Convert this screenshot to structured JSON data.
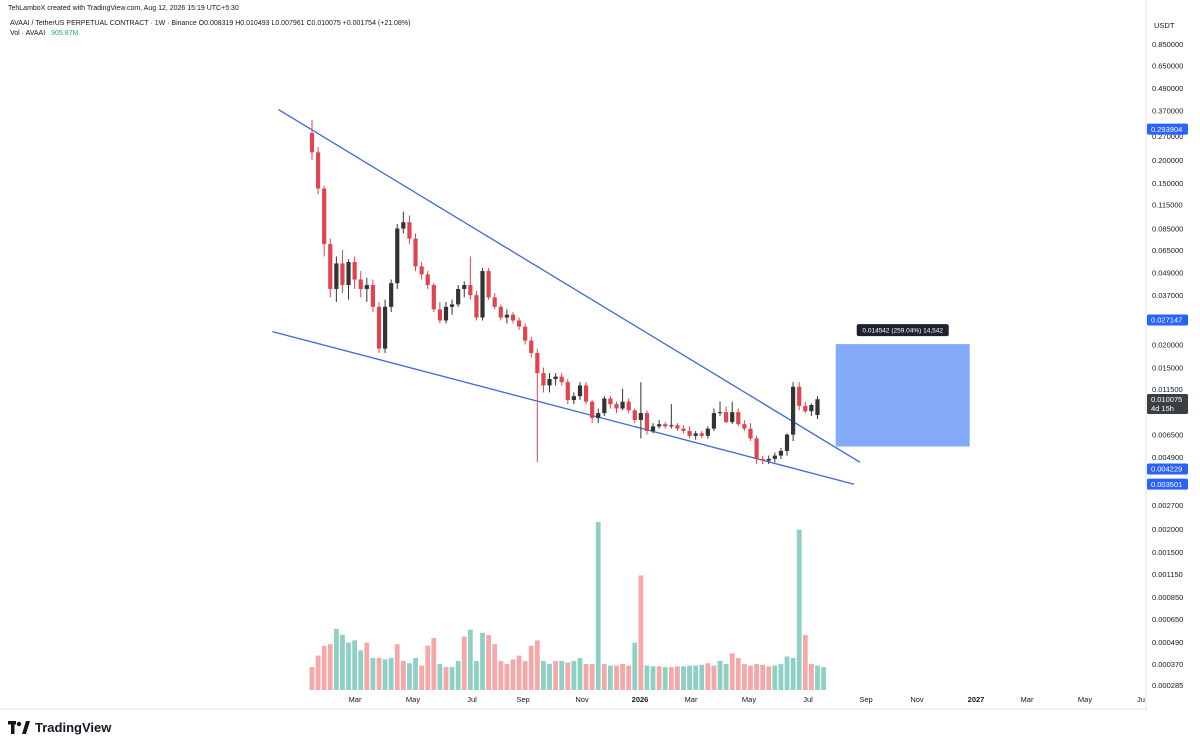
{
  "header": {
    "credit": "TehLamboX created with TradingView.com, Aug 12, 2026 15:19 UTC+5:30",
    "legend": "AVAAI / TetherUS PERPETUAL CONTRACT · 1W · Binance  O0.008319  H0.010493  L0.007961  C0.010075  +0.001754 (+21.08%)",
    "vol_label": "Vol · AVAAI",
    "vol_value": "905.87M"
  },
  "footer": {
    "brand": "TradingView"
  },
  "colors": {
    "up": "#333333",
    "down": "#e0454f",
    "vol_up": "#8fd0c4",
    "vol_down": "#f4a9a8",
    "trend": "#3c6ad6",
    "measure_box": "#6f9cf8"
  },
  "chart_data": {
    "type": "candlestick",
    "currency_label": "USDT",
    "y_scale": "log",
    "ylim": [
      0.0026,
      0.9
    ],
    "price_ticks": [
      "0.850000",
      "0.650000",
      "0.490000",
      "0.370000",
      "0.270000",
      "0.200000",
      "0.150000",
      "0.115000",
      "0.085000",
      "0.065000",
      "0.049000",
      "0.037000",
      "0.020000",
      "0.015000",
      "0.011500",
      "0.006500",
      "0.004900",
      "0.002700"
    ],
    "volume_ticks": [
      "0.002000",
      "0.001500",
      "0.001150",
      "0.000850",
      "0.000650",
      "0.000490",
      "0.000370",
      "0.000285"
    ],
    "x_ticks": [
      "Mar",
      "May",
      "Jul",
      "Sep",
      "Nov",
      "2026",
      "Mar",
      "May",
      "Jul",
      "Sep",
      "Nov",
      "2027",
      "Mar",
      "May",
      "Ju"
    ],
    "price_labels": [
      {
        "value": "0.293904",
        "price": 0.2939,
        "bg": "#2962ff",
        "fg": "#ffffff"
      },
      {
        "value": "0.027147",
        "price": 0.027147,
        "bg": "#2962ff",
        "fg": "#ffffff"
      },
      {
        "value": "0.010075",
        "sub": "4d 15h",
        "price": 0.010075,
        "bg": "#3a3e45",
        "fg": "#ffffff"
      },
      {
        "value": "0.004229",
        "price": 0.004229,
        "bg": "#2962ff",
        "fg": "#ffffff"
      },
      {
        "value": "0.003501",
        "price": 0.003501,
        "bg": "#2962ff",
        "fg": "#ffffff"
      }
    ],
    "measure": {
      "label": "0.014542 (259.04%) 14,542",
      "from_index": 86,
      "to_index": 108,
      "low": 0.0056,
      "high": 0.0201
    },
    "trendlines": [
      {
        "name": "upper",
        "start": [
          -5.5,
          0.375
        ],
        "end": [
          90,
          0.0046
        ]
      },
      {
        "name": "lower",
        "start": [
          -6.5,
          0.0235
        ],
        "end": [
          89,
          0.0035
        ]
      }
    ],
    "candles": [
      [
        0.28,
        0.33,
        0.2,
        0.22
      ],
      [
        0.22,
        0.235,
        0.13,
        0.14
      ],
      [
        0.14,
        0.145,
        0.06,
        0.07
      ],
      [
        0.07,
        0.075,
        0.036,
        0.04
      ],
      [
        0.04,
        0.06,
        0.034,
        0.055
      ],
      [
        0.055,
        0.065,
        0.038,
        0.042
      ],
      [
        0.042,
        0.058,
        0.035,
        0.056
      ],
      [
        0.056,
        0.06,
        0.04,
        0.045
      ],
      [
        0.045,
        0.05,
        0.036,
        0.04
      ],
      [
        0.04,
        0.046,
        0.034,
        0.042
      ],
      [
        0.042,
        0.045,
        0.03,
        0.032
      ],
      [
        0.032,
        0.034,
        0.018,
        0.019
      ],
      [
        0.019,
        0.035,
        0.018,
        0.032
      ],
      [
        0.032,
        0.045,
        0.03,
        0.043
      ],
      [
        0.043,
        0.09,
        0.04,
        0.085
      ],
      [
        0.085,
        0.105,
        0.08,
        0.092
      ],
      [
        0.092,
        0.1,
        0.07,
        0.075
      ],
      [
        0.075,
        0.08,
        0.05,
        0.053
      ],
      [
        0.053,
        0.056,
        0.045,
        0.048
      ],
      [
        0.048,
        0.05,
        0.04,
        0.042
      ],
      [
        0.042,
        0.043,
        0.03,
        0.031
      ],
      [
        0.031,
        0.034,
        0.026,
        0.027
      ],
      [
        0.027,
        0.034,
        0.026,
        0.032
      ],
      [
        0.032,
        0.035,
        0.029,
        0.033
      ],
      [
        0.033,
        0.042,
        0.032,
        0.04
      ],
      [
        0.04,
        0.044,
        0.036,
        0.042
      ],
      [
        0.042,
        0.06,
        0.035,
        0.037
      ],
      [
        0.037,
        0.039,
        0.027,
        0.028
      ],
      [
        0.028,
        0.052,
        0.027,
        0.05
      ],
      [
        0.05,
        0.052,
        0.035,
        0.036
      ],
      [
        0.036,
        0.038,
        0.031,
        0.032
      ],
      [
        0.032,
        0.033,
        0.027,
        0.028
      ],
      [
        0.028,
        0.031,
        0.026,
        0.029
      ],
      [
        0.029,
        0.03,
        0.026,
        0.027
      ],
      [
        0.027,
        0.028,
        0.024,
        0.025
      ],
      [
        0.025,
        0.026,
        0.02,
        0.021
      ],
      [
        0.021,
        0.022,
        0.017,
        0.018
      ],
      [
        0.018,
        0.019,
        0.0046,
        0.014
      ],
      [
        0.014,
        0.015,
        0.011,
        0.012
      ],
      [
        0.012,
        0.014,
        0.011,
        0.013
      ],
      [
        0.013,
        0.014,
        0.012,
        0.0134
      ],
      [
        0.0134,
        0.014,
        0.012,
        0.0125
      ],
      [
        0.0125,
        0.013,
        0.0095,
        0.01
      ],
      [
        0.01,
        0.011,
        0.0095,
        0.0105
      ],
      [
        0.0105,
        0.0125,
        0.01,
        0.012
      ],
      [
        0.012,
        0.0125,
        0.0095,
        0.0098
      ],
      [
        0.0098,
        0.01,
        0.0075,
        0.008
      ],
      [
        0.008,
        0.009,
        0.0075,
        0.0085
      ],
      [
        0.0085,
        0.0105,
        0.0082,
        0.0102
      ],
      [
        0.0102,
        0.0105,
        0.009,
        0.0095
      ],
      [
        0.0095,
        0.0098,
        0.0085,
        0.009
      ],
      [
        0.009,
        0.0115,
        0.0088,
        0.0098
      ],
      [
        0.0098,
        0.0102,
        0.0085,
        0.0088
      ],
      [
        0.0088,
        0.009,
        0.0075,
        0.0078
      ],
      [
        0.0078,
        0.0125,
        0.0062,
        0.0085
      ],
      [
        0.0085,
        0.0088,
        0.0065,
        0.0068
      ],
      [
        0.0068,
        0.0075,
        0.0066,
        0.0072
      ],
      [
        0.0072,
        0.0078,
        0.007,
        0.0074
      ],
      [
        0.0074,
        0.0076,
        0.007,
        0.0072
      ],
      [
        0.0072,
        0.0095,
        0.007,
        0.0073
      ],
      [
        0.0073,
        0.0075,
        0.0068,
        0.007
      ],
      [
        0.007,
        0.0073,
        0.0066,
        0.0068
      ],
      [
        0.0068,
        0.0072,
        0.0062,
        0.0064
      ],
      [
        0.0064,
        0.0068,
        0.0061,
        0.0066
      ],
      [
        0.0066,
        0.0068,
        0.0062,
        0.0064
      ],
      [
        0.0064,
        0.0072,
        0.0062,
        0.007
      ],
      [
        0.007,
        0.009,
        0.0068,
        0.0085
      ],
      [
        0.0085,
        0.0098,
        0.0082,
        0.0086
      ],
      [
        0.0086,
        0.0092,
        0.0075,
        0.0076
      ],
      [
        0.0076,
        0.0098,
        0.0074,
        0.0086
      ],
      [
        0.0086,
        0.009,
        0.0072,
        0.0074
      ],
      [
        0.0074,
        0.0078,
        0.0068,
        0.007
      ],
      [
        0.007,
        0.0075,
        0.006,
        0.0062
      ],
      [
        0.0062,
        0.0064,
        0.0045,
        0.0048
      ],
      [
        0.0048,
        0.005,
        0.0045,
        0.0047
      ],
      [
        0.0047,
        0.005,
        0.0045,
        0.0048
      ],
      [
        0.0048,
        0.0052,
        0.0046,
        0.005
      ],
      [
        0.005,
        0.0055,
        0.0048,
        0.0053
      ],
      [
        0.0053,
        0.0066,
        0.005,
        0.0065
      ],
      [
        0.0065,
        0.0125,
        0.006,
        0.0118
      ],
      [
        0.0118,
        0.0125,
        0.0088,
        0.0093
      ],
      [
        0.0093,
        0.0098,
        0.0085,
        0.0087
      ],
      [
        0.0087,
        0.0096,
        0.0082,
        0.0094
      ],
      [
        0.0083,
        0.0105,
        0.0079,
        0.0101
      ]
    ],
    "volume": [
      [
        0.0003,
        0
      ],
      [
        0.00045,
        0
      ],
      [
        0.00058,
        0
      ],
      [
        0.0006,
        0
      ],
      [
        0.0008,
        1
      ],
      [
        0.00072,
        1
      ],
      [
        0.00062,
        1
      ],
      [
        0.00065,
        1
      ],
      [
        0.00052,
        1
      ],
      [
        0.00062,
        0
      ],
      [
        0.00042,
        1
      ],
      [
        0.00042,
        0
      ],
      [
        0.0004,
        1
      ],
      [
        0.00042,
        1
      ],
      [
        0.0006,
        0
      ],
      [
        0.00038,
        0
      ],
      [
        0.00035,
        1
      ],
      [
        0.00042,
        1
      ],
      [
        0.00032,
        0
      ],
      [
        0.00058,
        0
      ],
      [
        0.00068,
        0
      ],
      [
        0.00034,
        1
      ],
      [
        0.0003,
        0
      ],
      [
        0.0003,
        1
      ],
      [
        0.00038,
        1
      ],
      [
        0.0007,
        0
      ],
      [
        0.00079,
        1
      ],
      [
        0.00038,
        1
      ],
      [
        0.00075,
        1
      ],
      [
        0.00072,
        0
      ],
      [
        0.0006,
        0
      ],
      [
        0.00038,
        0
      ],
      [
        0.00034,
        0
      ],
      [
        0.0004,
        0
      ],
      [
        0.00045,
        0
      ],
      [
        0.00038,
        0
      ],
      [
        0.00058,
        0
      ],
      [
        0.00065,
        0
      ],
      [
        0.00038,
        1
      ],
      [
        0.00034,
        1
      ],
      [
        0.00038,
        0
      ],
      [
        0.00038,
        1
      ],
      [
        0.00036,
        0
      ],
      [
        0.00038,
        1
      ],
      [
        0.00042,
        1
      ],
      [
        0.00034,
        0
      ],
      [
        0.00034,
        0
      ],
      [
        0.0022,
        1
      ],
      [
        0.00034,
        0
      ],
      [
        0.00032,
        1
      ],
      [
        0.00032,
        0
      ],
      [
        0.00034,
        0
      ],
      [
        0.00032,
        0
      ],
      [
        0.00062,
        1
      ],
      [
        0.0015,
        0
      ],
      [
        0.00032,
        1
      ],
      [
        0.00031,
        1
      ],
      [
        0.00031,
        0
      ],
      [
        0.0003,
        1
      ],
      [
        0.0003,
        0
      ],
      [
        0.00031,
        0
      ],
      [
        0.00031,
        1
      ],
      [
        0.00032,
        1
      ],
      [
        0.00032,
        1
      ],
      [
        0.00033,
        1
      ],
      [
        0.00035,
        0
      ],
      [
        0.00032,
        0
      ],
      [
        0.00038,
        1
      ],
      [
        0.00034,
        1
      ],
      [
        0.00048,
        0
      ],
      [
        0.00042,
        0
      ],
      [
        0.00034,
        0
      ],
      [
        0.00032,
        0
      ],
      [
        0.00034,
        0
      ],
      [
        0.00033,
        0
      ],
      [
        0.00031,
        0
      ],
      [
        0.00032,
        1
      ],
      [
        0.00034,
        1
      ],
      [
        0.00044,
        1
      ],
      [
        0.00042,
        1
      ],
      [
        0.0021,
        1
      ],
      [
        0.00072,
        0
      ],
      [
        0.00034,
        0
      ],
      [
        0.00032,
        1
      ],
      [
        0.0003,
        1
      ]
    ]
  }
}
